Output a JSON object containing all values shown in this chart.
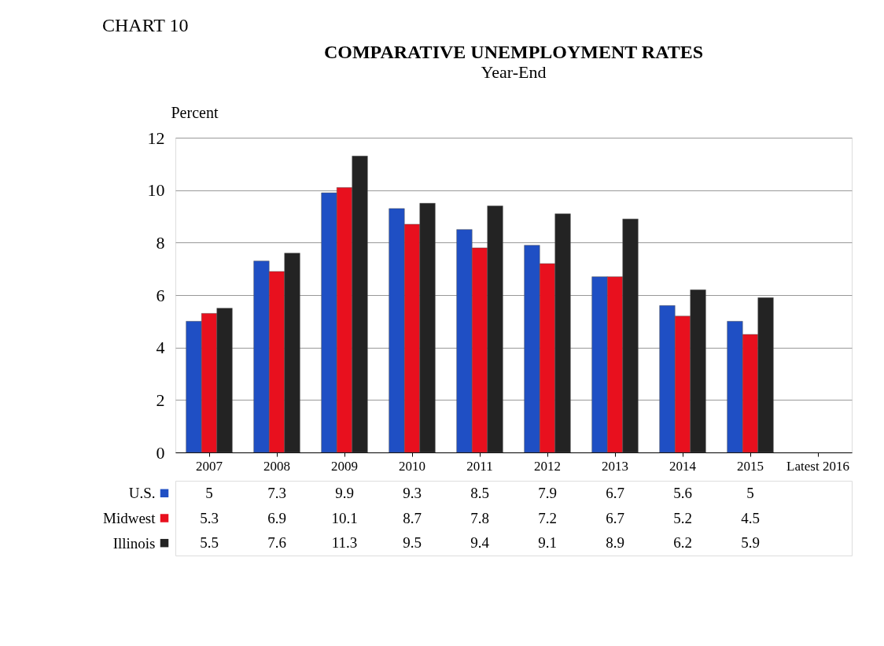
{
  "chart_data": {
    "type": "bar",
    "title": "COMPARATIVE UNEMPLOYMENT RATES",
    "subtitle": "Year-End",
    "ylabel": "Percent",
    "annotations": [
      "CHART 10"
    ],
    "categories": [
      "2007",
      "2008",
      "2009",
      "2010",
      "2011",
      "2012",
      "2013",
      "2014",
      "2015",
      "Latest 2016"
    ],
    "series": [
      {
        "name": "U.S.",
        "color": "#1f4fc4",
        "values": [
          5,
          7.3,
          9.9,
          9.3,
          8.5,
          7.9,
          6.7,
          5.6,
          5,
          null
        ]
      },
      {
        "name": "Midwest",
        "color": "#e8101e",
        "values": [
          5.3,
          6.9,
          10.1,
          8.7,
          7.8,
          7.2,
          6.7,
          5.2,
          4.5,
          null
        ]
      },
      {
        "name": "Illinois",
        "color": "#232323",
        "values": [
          5.5,
          7.6,
          11.3,
          9.5,
          9.4,
          9.1,
          8.9,
          6.2,
          5.9,
          null
        ]
      }
    ],
    "ylim": [
      0,
      12
    ],
    "yticks": [
      0,
      2,
      4,
      6,
      8,
      10,
      12
    ],
    "grid": "y",
    "legend": "bottom",
    "data_labels": true
  }
}
